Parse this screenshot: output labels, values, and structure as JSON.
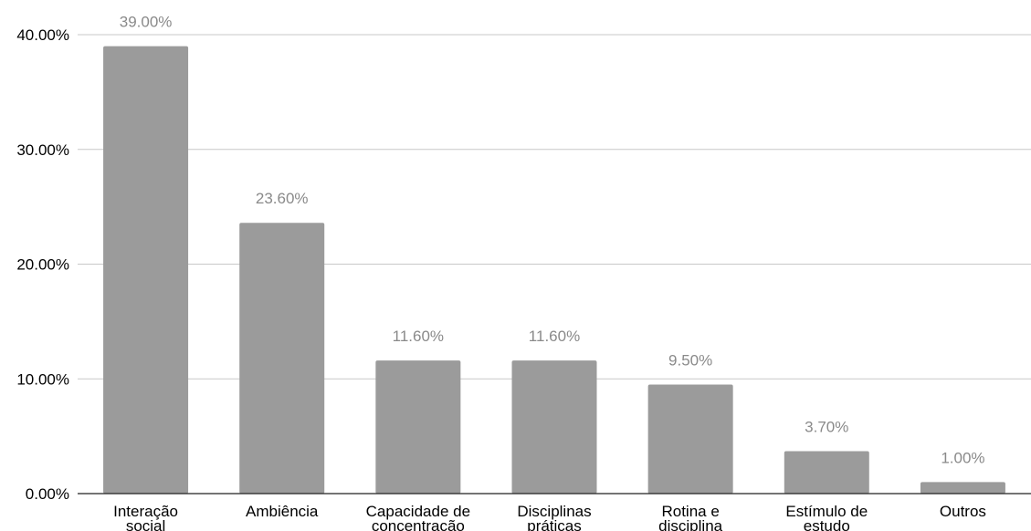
{
  "chart_data": {
    "type": "bar",
    "categories": [
      [
        "Interação",
        "social"
      ],
      [
        "Ambiência"
      ],
      [
        "Capacidade de",
        "concentração"
      ],
      [
        "Disciplinas",
        "práticas"
      ],
      [
        "Rotina e",
        "disciplina"
      ],
      [
        "Estímulo de",
        "estudo"
      ],
      [
        "Outros"
      ]
    ],
    "values": [
      39.0,
      23.6,
      11.6,
      11.6,
      9.5,
      3.7,
      1.0
    ],
    "data_labels": [
      "39.00%",
      "23.60%",
      "11.60%",
      "11.60%",
      "9.50%",
      "3.70%",
      "1.00%"
    ],
    "y_ticks": [
      0,
      10,
      20,
      30,
      40
    ],
    "y_tick_labels": [
      "0.00%",
      "10.00%",
      "20.00%",
      "30.00%",
      "40.00%"
    ],
    "ylim": [
      0,
      40
    ],
    "grid": true,
    "legend": "none",
    "bar_color": "#9b9b9b"
  }
}
